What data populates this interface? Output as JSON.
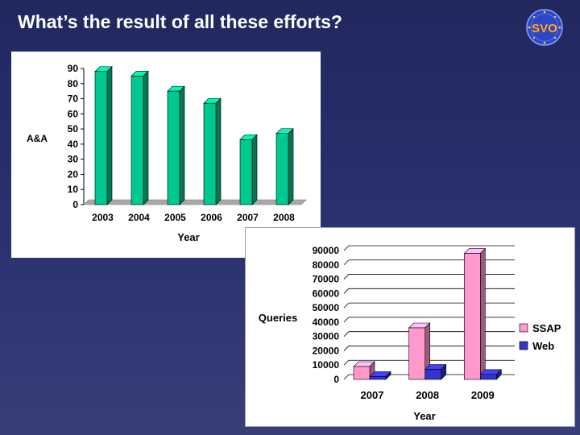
{
  "slide": {
    "title": "What’s the result of all these efforts?",
    "logo_text": "SVO"
  },
  "colors": {
    "background": "#262d68",
    "aa_bar": "#00c890",
    "ssap": "#ff99cc",
    "web": "#3333cc"
  },
  "chart_data": [
    {
      "type": "bar",
      "categories": [
        "2003",
        "2004",
        "2005",
        "2006",
        "2007",
        "2008"
      ],
      "values": [
        88,
        85,
        75,
        67,
        43,
        47
      ],
      "title": "",
      "xlabel": "Year",
      "ylabel": "A&A",
      "ylim": [
        0,
        90
      ],
      "yticks": [
        "0",
        "10",
        "20",
        "30",
        "40",
        "50",
        "60",
        "70",
        "80",
        "90"
      ],
      "grid": false,
      "legend": "none"
    },
    {
      "type": "bar",
      "categories": [
        "2007",
        "2008",
        "2009"
      ],
      "series": [
        {
          "name": "SSAP",
          "values": [
            9000,
            36000,
            88000
          ]
        },
        {
          "name": "Web",
          "values": [
            2000,
            7000,
            3500
          ]
        }
      ],
      "title": "",
      "xlabel": "Year",
      "ylabel": "Queries",
      "ylim": [
        0,
        90000
      ],
      "yticks": [
        "0",
        "10000",
        "20000",
        "30000",
        "40000",
        "50000",
        "60000",
        "70000",
        "80000",
        "90000"
      ],
      "grid": true,
      "legend": "right"
    }
  ]
}
